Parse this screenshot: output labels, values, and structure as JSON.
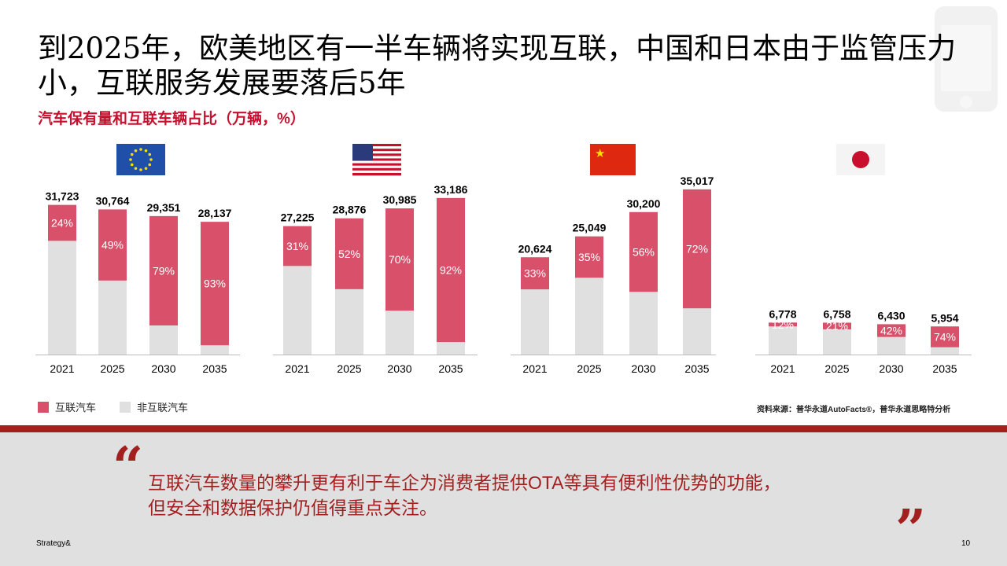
{
  "header": {
    "title": "到2025年，欧美地区有一半车辆将实现互联，中国和日本由于监管压力小，互联服务发展要落后5年",
    "subtitle": "汽车保有量和互联车辆占比（万辆，%）",
    "corner_icon": "smartphone-icon"
  },
  "colors": {
    "connected": "#d9506a",
    "non_connected": "#e0e0e0",
    "accent": "#a32020"
  },
  "chart_data": [
    {
      "type": "bar",
      "stacked": true,
      "region": "EU",
      "flag": "eu-flag",
      "categories": [
        "2021",
        "2025",
        "2030",
        "2035"
      ],
      "totals": [
        31723,
        30764,
        29351,
        28137
      ],
      "totals_labels": [
        "31,723",
        "30,764",
        "29,351",
        "28,137"
      ],
      "connected_pct": [
        24,
        49,
        79,
        93
      ],
      "pct_labels": [
        "24%",
        "49%",
        "79%",
        "93%"
      ]
    },
    {
      "type": "bar",
      "stacked": true,
      "region": "US",
      "flag": "us-flag",
      "categories": [
        "2021",
        "2025",
        "2030",
        "2035"
      ],
      "totals": [
        27225,
        28876,
        30985,
        33186
      ],
      "totals_labels": [
        "27,225",
        "28,876",
        "30,985",
        "33,186"
      ],
      "connected_pct": [
        31,
        52,
        70,
        92
      ],
      "pct_labels": [
        "31%",
        "52%",
        "70%",
        "92%"
      ]
    },
    {
      "type": "bar",
      "stacked": true,
      "region": "China",
      "flag": "china-flag",
      "categories": [
        "2021",
        "2025",
        "2030",
        "2035"
      ],
      "totals": [
        20624,
        25049,
        30200,
        35017
      ],
      "totals_labels": [
        "20,624",
        "25,049",
        "30,200",
        "35,017"
      ],
      "connected_pct": [
        33,
        35,
        56,
        72
      ],
      "pct_labels": [
        "33%",
        "35%",
        "56%",
        "72%"
      ]
    },
    {
      "type": "bar",
      "stacked": true,
      "region": "Japan",
      "flag": "japan-flag",
      "categories": [
        "2021",
        "2025",
        "2030",
        "2035"
      ],
      "totals": [
        6778,
        6758,
        6430,
        5954
      ],
      "totals_labels": [
        "6,778",
        "6,758",
        "6,430",
        "5,954"
      ],
      "connected_pct": [
        12,
        21,
        42,
        74
      ],
      "pct_labels": [
        "12%",
        "21%",
        "42%",
        "74%"
      ]
    }
  ],
  "legend": {
    "connected": "互联汽车",
    "non_connected": "非互联汽车"
  },
  "source": "资料来源：普华永道AutoFacts®，普华永道思略特分析",
  "quote": {
    "line1": "互联汽车数量的攀升更有利于车企为消费者提供OTA等具有便利性优势的功能，",
    "line2": "但安全和数据保护仍值得重点关注。",
    "open": "“",
    "close": "”"
  },
  "footer": {
    "brand": "Strategy&",
    "page": "10"
  }
}
